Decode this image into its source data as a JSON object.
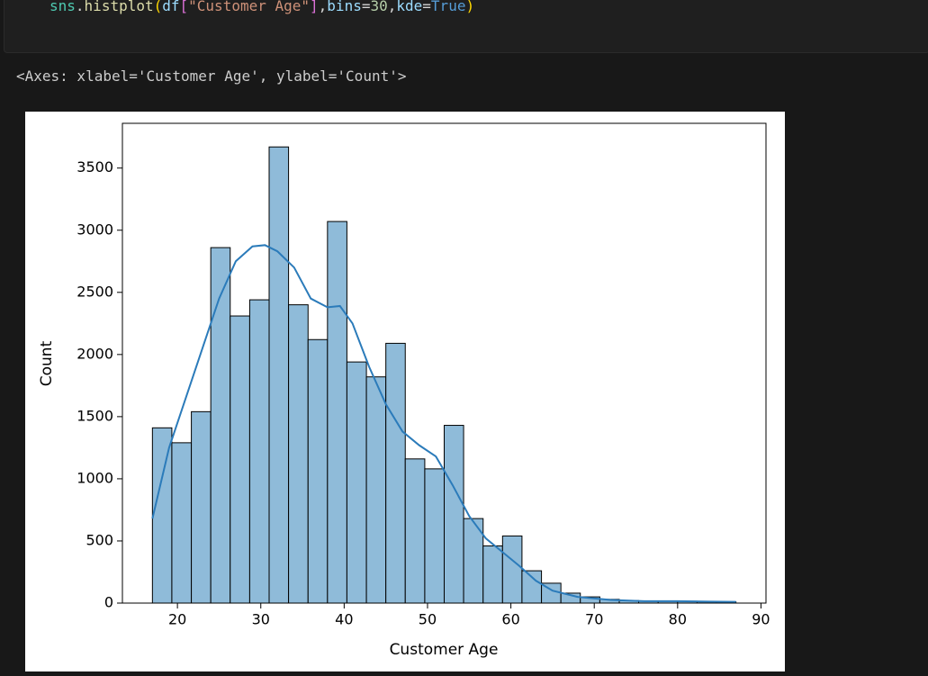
{
  "code_tokens": [
    {
      "text": "sns",
      "color": "#4ec9b0"
    },
    {
      "text": ".",
      "color": "#d4d4d4"
    },
    {
      "text": "histplot",
      "color": "#dcdcaa"
    },
    {
      "text": "(",
      "color": "#ffd700"
    },
    {
      "text": "df",
      "color": "#9cdcfe"
    },
    {
      "text": "[",
      "color": "#da70d6"
    },
    {
      "text": "\"Customer Age\"",
      "color": "#ce9178"
    },
    {
      "text": "]",
      "color": "#da70d6"
    },
    {
      "text": ",",
      "color": "#d4d4d4"
    },
    {
      "text": "bins",
      "color": "#9cdcfe"
    },
    {
      "text": "=",
      "color": "#d4d4d4"
    },
    {
      "text": "30",
      "color": "#b5cea8"
    },
    {
      "text": ",",
      "color": "#d4d4d4"
    },
    {
      "text": "kde",
      "color": "#9cdcfe"
    },
    {
      "text": "=",
      "color": "#d4d4d4"
    },
    {
      "text": "True",
      "color": "#569cd6"
    },
    {
      "text": ")",
      "color": "#ffd700"
    }
  ],
  "output_text": "<Axes: xlabel='Customer Age', ylabel='Count'>",
  "chart_data": {
    "type": "histogram",
    "x_label": "Customer Age",
    "y_label": "Count",
    "color": "#8fbbd9",
    "edge_color": "#000000",
    "bins": [
      17,
      19.33,
      21.67,
      24,
      26.33,
      28.67,
      31,
      33.33,
      35.67,
      38,
      40.33,
      42.67,
      45,
      47.33,
      49.67,
      52,
      54.33,
      56.67,
      59,
      61.33,
      63.67,
      66,
      68.33,
      70.67,
      73,
      75.33,
      77.67,
      80,
      82.33,
      84.67,
      87
    ],
    "counts": [
      1410,
      1290,
      1540,
      2860,
      2310,
      2440,
      3670,
      2400,
      2120,
      3070,
      1940,
      1820,
      2090,
      1160,
      1080,
      1430,
      680,
      460,
      540,
      260,
      160,
      80,
      50,
      30,
      20,
      15,
      15,
      15,
      10,
      10
    ],
    "kde": {
      "color": "#2b7bba",
      "x": [
        17,
        19,
        21,
        23,
        25,
        27,
        29,
        30.5,
        32,
        34,
        36,
        38,
        39.5,
        41,
        43,
        45,
        47,
        49,
        51,
        53,
        55,
        57,
        59,
        61,
        63,
        65,
        68,
        72,
        76,
        80,
        84,
        87
      ],
      "values": [
        680,
        1250,
        1650,
        2050,
        2450,
        2750,
        2870,
        2880,
        2830,
        2700,
        2450,
        2380,
        2390,
        2250,
        1900,
        1600,
        1380,
        1270,
        1180,
        950,
        700,
        520,
        410,
        300,
        180,
        100,
        50,
        25,
        15,
        15,
        12,
        10
      ]
    },
    "xlim": [
      13.4,
      90.6
    ],
    "ylim": [
      0,
      3860
    ],
    "xticks": [
      20,
      30,
      40,
      50,
      60,
      70,
      80,
      90
    ],
    "yticks": [
      0,
      500,
      1000,
      1500,
      2000,
      2500,
      3000,
      3500
    ]
  }
}
